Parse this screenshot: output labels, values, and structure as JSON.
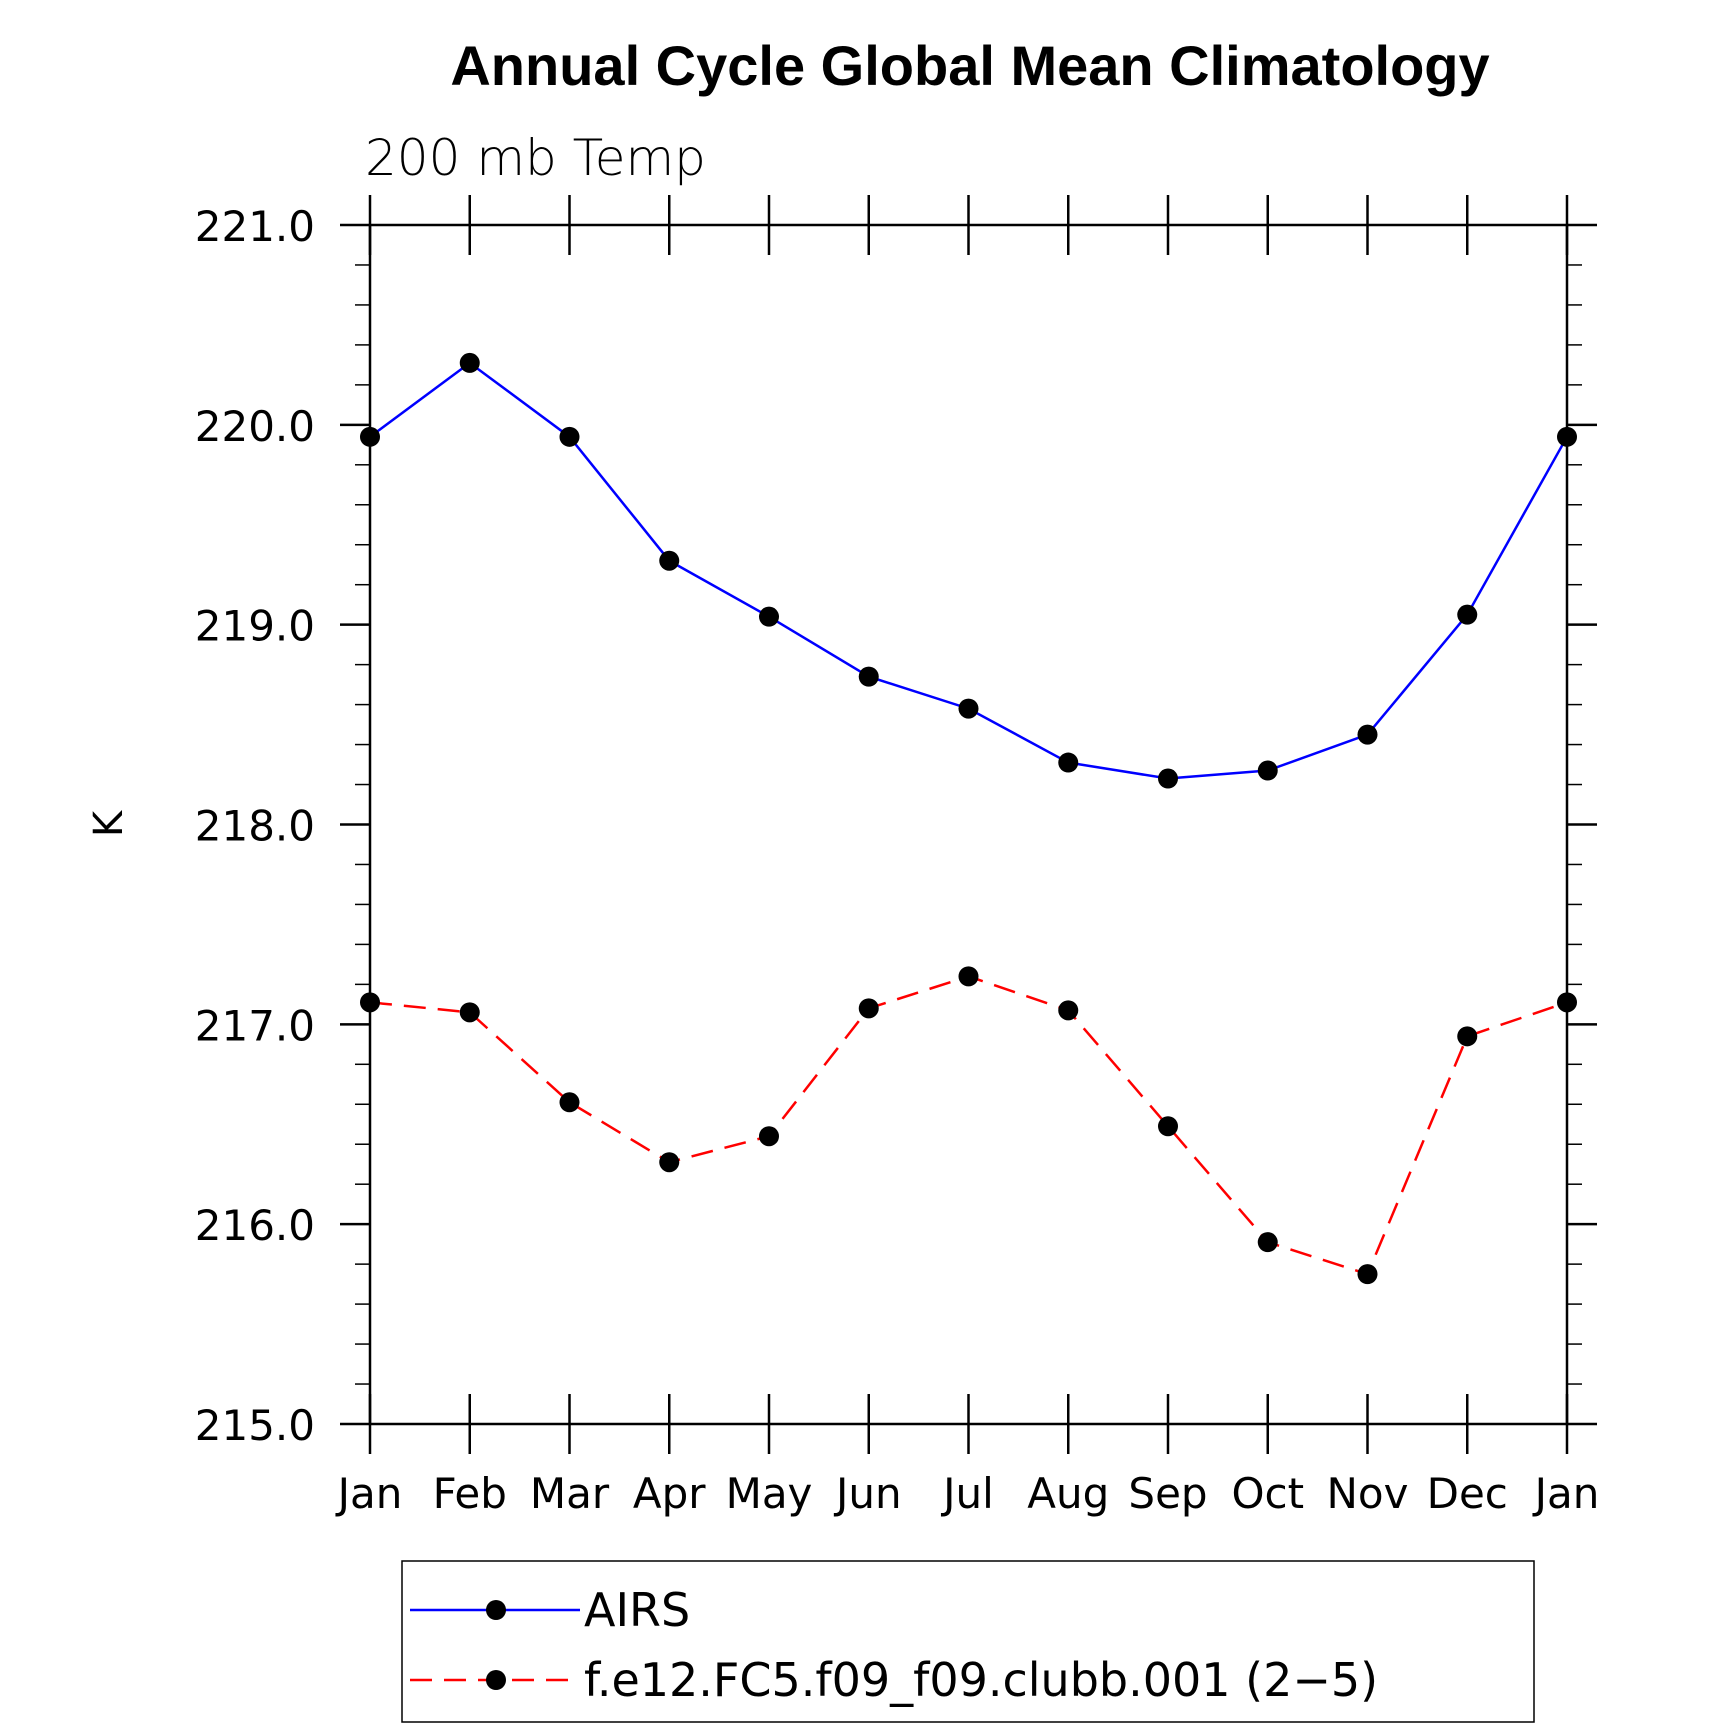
{
  "chart_data": {
    "type": "line",
    "title": "Annual Cycle Global Mean Climatology",
    "subtitle": "200 mb Temp",
    "ylabel": "K",
    "xlabel": "",
    "categories": [
      "Jan",
      "Feb",
      "Mar",
      "Apr",
      "May",
      "Jun",
      "Jul",
      "Aug",
      "Sep",
      "Oct",
      "Nov",
      "Dec",
      "Jan"
    ],
    "ylim": [
      215.0,
      221.0
    ],
    "yticks": [
      "215.0",
      "216.0",
      "217.0",
      "218.0",
      "219.0",
      "220.0",
      "221.0"
    ],
    "grid": false,
    "legend_position": "bottom",
    "series": [
      {
        "name": "AIRS",
        "color": "#0000ff",
        "dash": "solid",
        "values": [
          219.94,
          220.31,
          219.94,
          219.32,
          219.04,
          218.74,
          218.58,
          218.31,
          218.23,
          218.27,
          218.45,
          219.05,
          219.94
        ]
      },
      {
        "name": "f.e12.FC5.f09_f09.clubb.001 (2−5)",
        "color": "#ff0000",
        "dash": "dashed",
        "values": [
          217.11,
          217.06,
          216.61,
          216.31,
          216.44,
          217.08,
          217.24,
          217.07,
          216.49,
          215.91,
          215.75,
          216.94,
          217.11
        ]
      }
    ]
  }
}
